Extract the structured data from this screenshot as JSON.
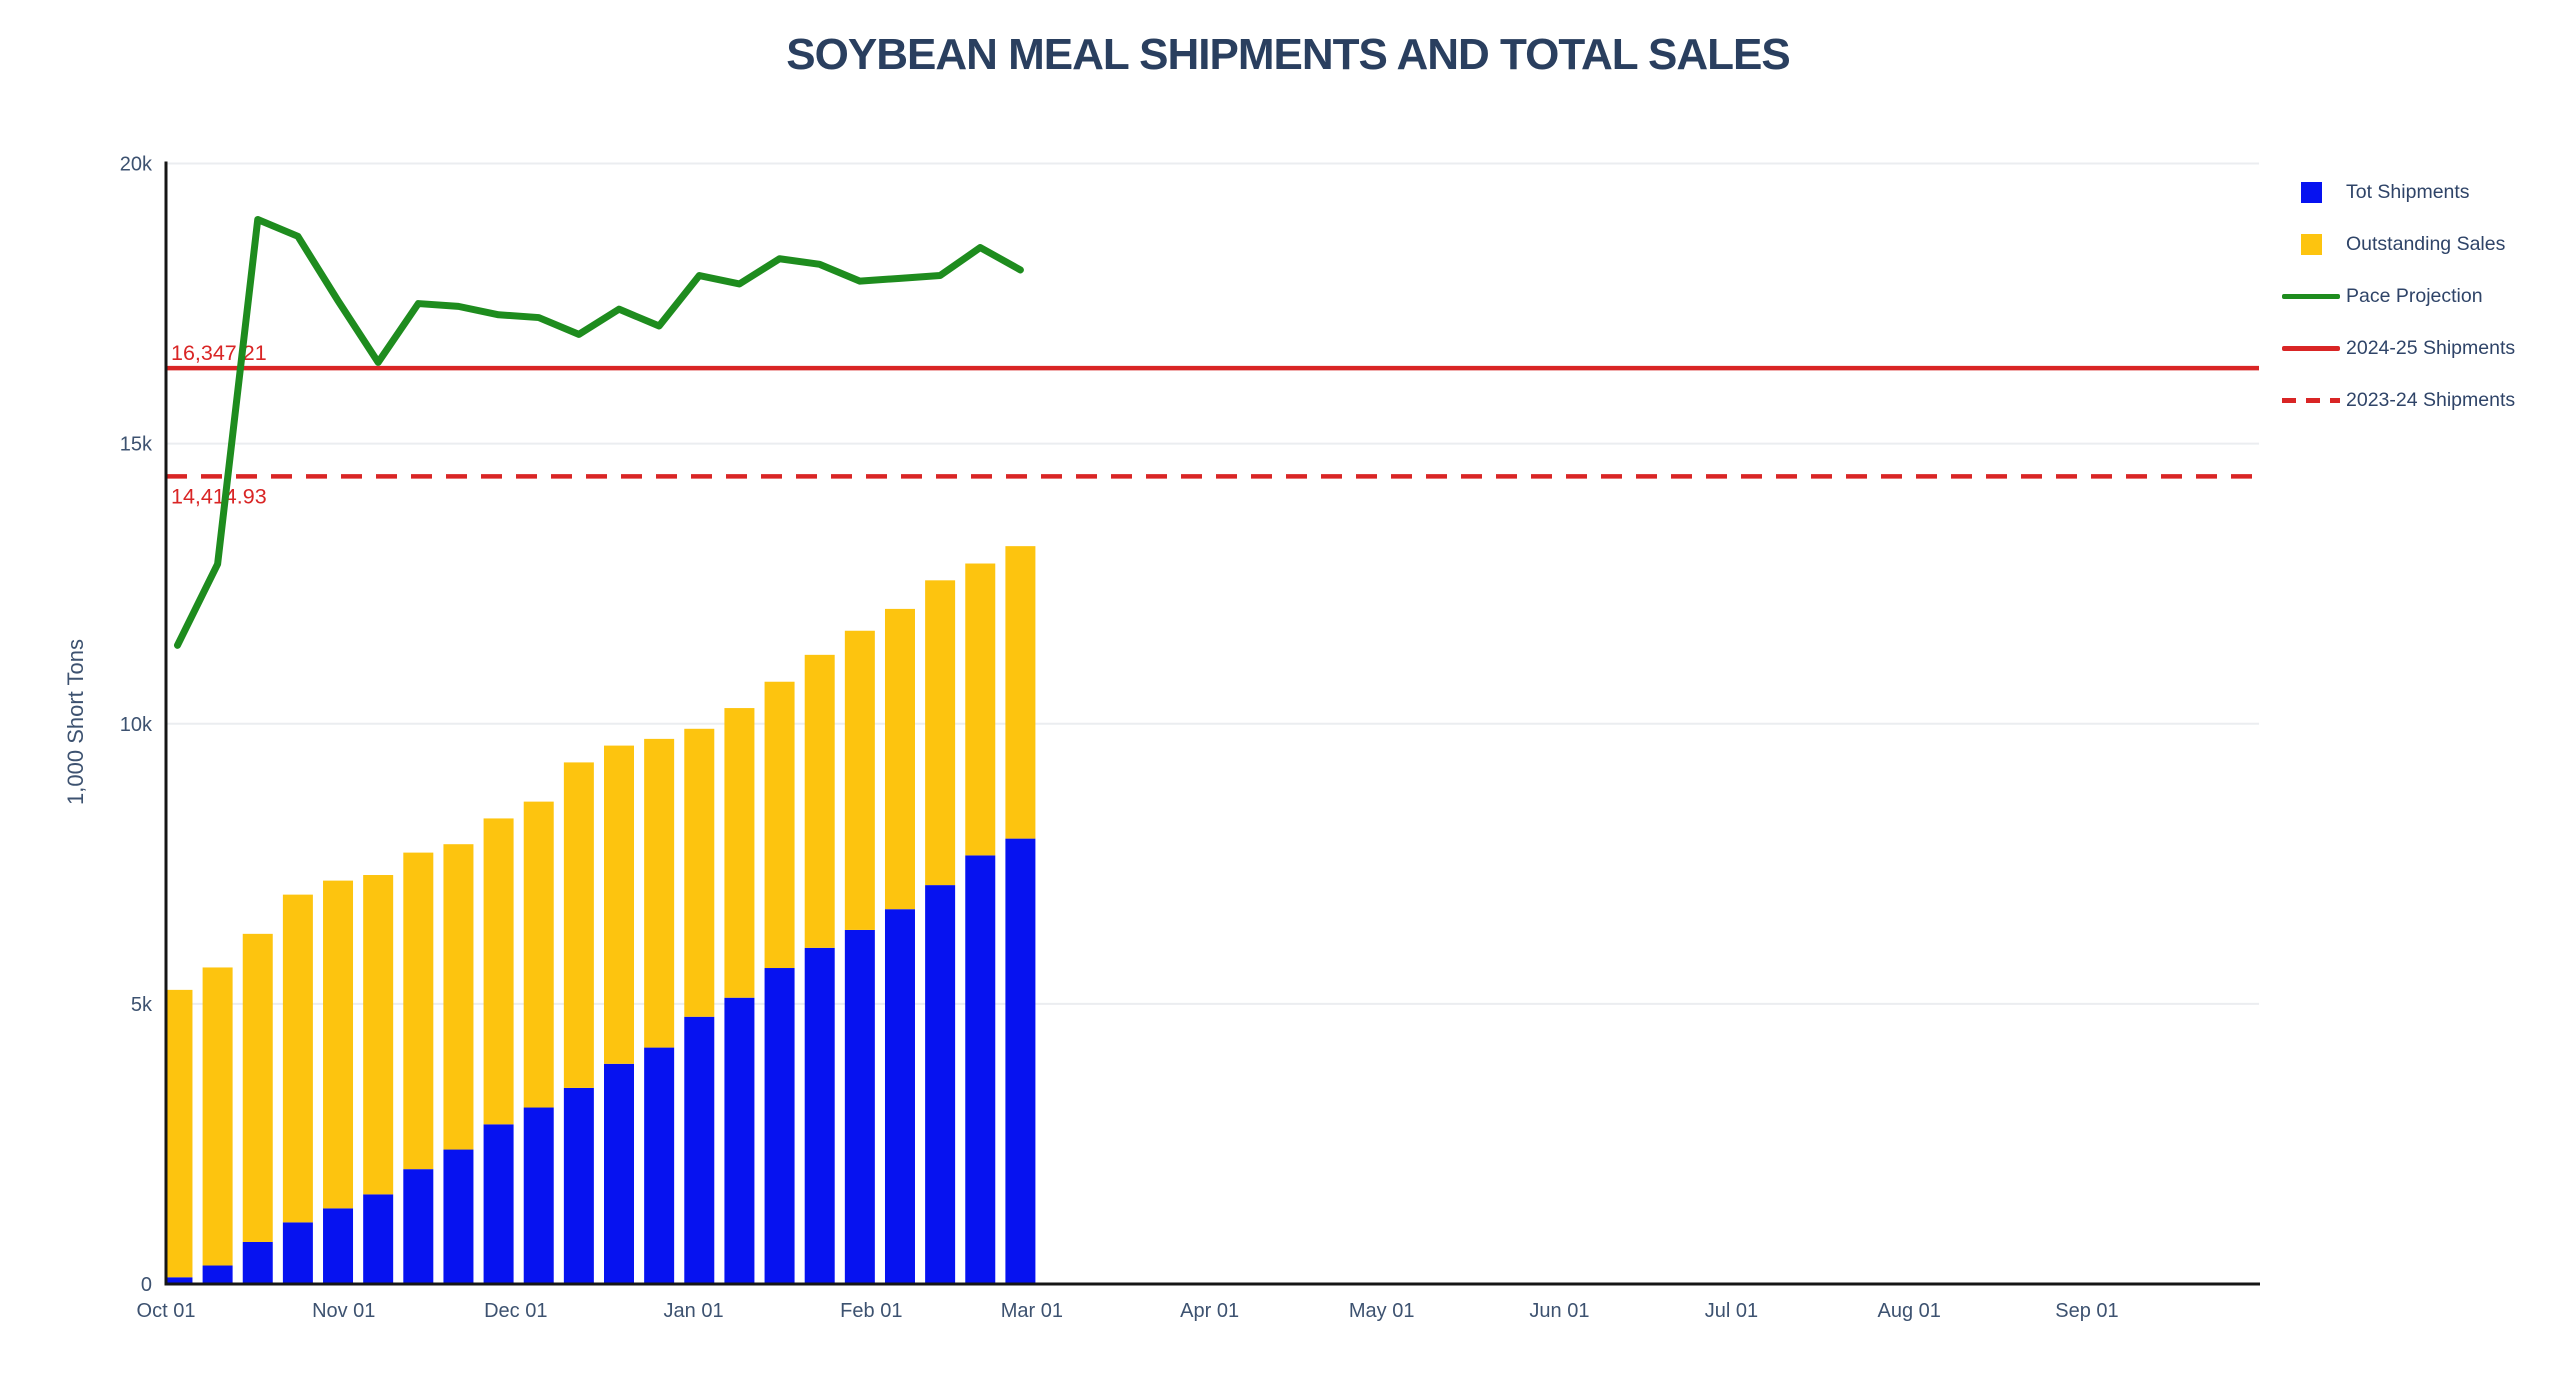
{
  "title": "SOYBEAN MEAL SHIPMENTS AND TOTAL SALES",
  "colors": {
    "title_text": "#2a3f5f",
    "axis_text": "#3d5270",
    "grid_line": "#ebedf0",
    "axis_line": "#161616",
    "shipments_blue": "#0612f0",
    "outstanding_gold": "#fdc40f",
    "pace_green": "#1e8c1e",
    "reference_red": "#d92525"
  },
  "chart_data": {
    "type": "combo-stacked-bar-line",
    "title": "SOYBEAN MEAL SHIPMENTS AND TOTAL SALES",
    "xlabel": "",
    "ylabel": "1,000 Short Tons",
    "ylim": [
      0,
      20000
    ],
    "grid": "horizontal-only",
    "legend_position": "right",
    "x_axis_ticks": {
      "labels": [
        "Oct 01",
        "Nov 01",
        "Dec 01",
        "Jan 01",
        "Feb 01",
        "Mar 01",
        "Apr 01",
        "May 01",
        "Jun 01",
        "Jul 01",
        "Aug 01",
        "Sep 01"
      ],
      "day_offsets": [
        0,
        31,
        61,
        92,
        123,
        151,
        182,
        212,
        243,
        273,
        304,
        335
      ],
      "axis_span_days": 365
    },
    "y_axis_ticks": [
      {
        "label": "0",
        "value": 0
      },
      {
        "label": "5k",
        "value": 5000
      },
      {
        "label": "10k",
        "value": 10000
      },
      {
        "label": "15k",
        "value": 15000
      },
      {
        "label": "20k",
        "value": 20000
      }
    ],
    "categories": [
      "Oct 03",
      "Oct 10",
      "Oct 17",
      "Oct 24",
      "Oct 31",
      "Nov 07",
      "Nov 14",
      "Nov 21",
      "Nov 28",
      "Dec 05",
      "Dec 12",
      "Dec 19",
      "Dec 26",
      "Jan 02",
      "Jan 09",
      "Jan 16",
      "Jan 23",
      "Jan 30",
      "Feb 06",
      "Feb 13",
      "Feb 20",
      "Feb 27"
    ],
    "category_day_offsets": [
      2,
      9,
      16,
      23,
      30,
      37,
      44,
      51,
      58,
      65,
      72,
      79,
      86,
      93,
      100,
      107,
      114,
      121,
      128,
      135,
      142,
      149
    ],
    "series": [
      {
        "name": "Tot Shipments",
        "type": "bar",
        "stack": "base",
        "color": "#0612f0",
        "values": [
          120,
          330,
          750,
          1100,
          1350,
          1600,
          2050,
          2400,
          2850,
          3150,
          3500,
          3930,
          4220,
          4770,
          5110,
          5640,
          6000,
          6320,
          6690,
          7120,
          7650,
          7950
        ]
      },
      {
        "name": "Outstanding Sales",
        "type": "bar",
        "stack": "top",
        "color": "#fdc40f",
        "values": [
          5130,
          5320,
          5500,
          5850,
          5850,
          5700,
          5650,
          5450,
          5460,
          5460,
          5810,
          5680,
          5510,
          5140,
          5170,
          5110,
          5230,
          5340,
          5360,
          5440,
          5210,
          5220
        ]
      },
      {
        "name": "Pace Projection",
        "type": "line",
        "color": "#1e8c1e",
        "values": [
          11400,
          12850,
          19000,
          18700,
          17550,
          16450,
          17500,
          17450,
          17300,
          17250,
          16950,
          17400,
          17100,
          18000,
          17850,
          18300,
          18200,
          17900,
          17950,
          18000,
          18500,
          18100
        ]
      },
      {
        "name": "2024-25 Shipments",
        "type": "hline",
        "style": "solid",
        "color": "#d92525",
        "value": 16347.21,
        "label": "16,347.21",
        "label_pos": "above"
      },
      {
        "name": "2023-24 Shipments",
        "type": "hline",
        "style": "dashed",
        "color": "#d92525",
        "value": 14414.93,
        "label": "14,414.93",
        "label_pos": "below"
      }
    ]
  },
  "legend": {
    "items": [
      {
        "label": "Tot Shipments",
        "swatch": "square",
        "series": 0
      },
      {
        "label": "Outstanding Sales",
        "swatch": "square",
        "series": 1
      },
      {
        "label": "Pace Projection",
        "swatch": "line",
        "series": 2
      },
      {
        "label": "2024-25 Shipments",
        "swatch": "line",
        "series": 3
      },
      {
        "label": "2023-24 Shipments",
        "swatch": "dash",
        "series": 4
      }
    ]
  }
}
